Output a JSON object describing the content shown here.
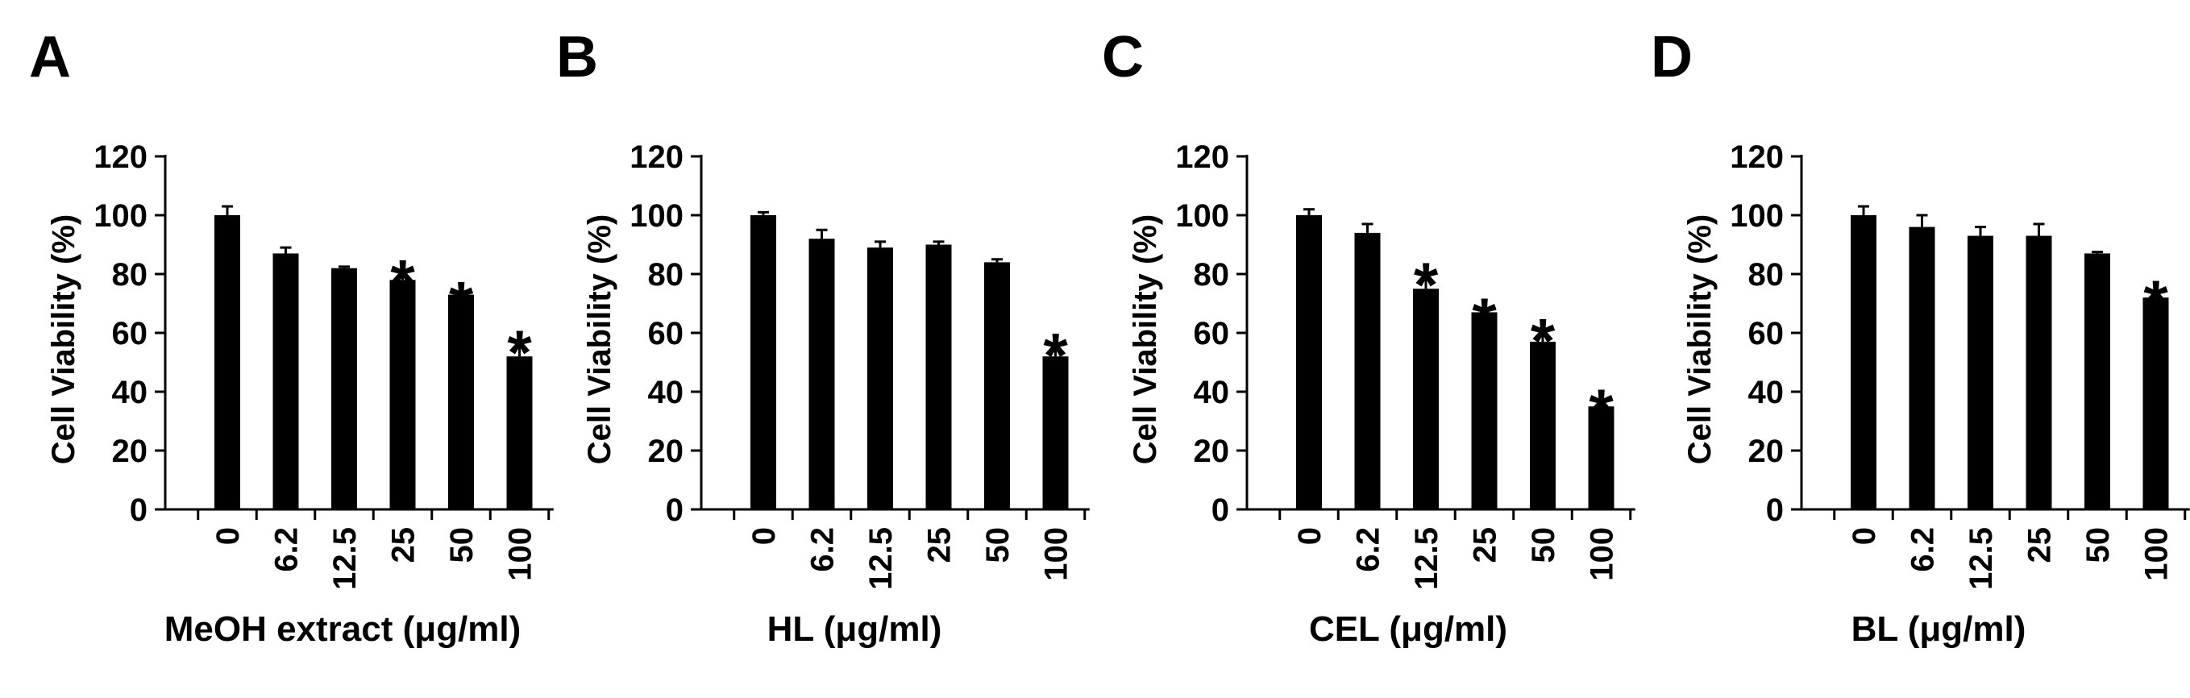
{
  "colors": {
    "bar": "#000000",
    "axis": "#000000",
    "background": "#ffffff"
  },
  "chart_data": [
    {
      "type": "bar",
      "panel_label": "A",
      "categories": [
        "0",
        "6.2",
        "12.5",
        "25",
        "50",
        "100"
      ],
      "values": [
        100,
        87,
        82,
        78,
        73,
        52
      ],
      "errors": [
        3,
        2,
        0.5,
        3,
        0.5,
        5
      ],
      "significant": [
        false,
        false,
        false,
        true,
        true,
        true
      ],
      "significance_marker": "*",
      "title": "",
      "xlabel": "MeOH extract (μg/ml)",
      "ylabel": "Cell Viability  (%)",
      "ylim": [
        0,
        120
      ],
      "yticks": [
        0,
        20,
        40,
        60,
        80,
        100,
        120
      ],
      "grid": false,
      "legend": "none"
    },
    {
      "type": "bar",
      "panel_label": "B",
      "categories": [
        "0",
        "6.2",
        "12.5",
        "25",
        "50",
        "100"
      ],
      "values": [
        100,
        92,
        89,
        90,
        84,
        52
      ],
      "errors": [
        1,
        3,
        2,
        1,
        1,
        4
      ],
      "significant": [
        false,
        false,
        false,
        false,
        false,
        true
      ],
      "significance_marker": "*",
      "title": "",
      "xlabel": "HL (μg/ml)",
      "ylabel": "Cell Viability  (%)",
      "ylim": [
        0,
        120
      ],
      "yticks": [
        0,
        20,
        40,
        60,
        80,
        100,
        120
      ],
      "grid": false,
      "legend": "none"
    },
    {
      "type": "bar",
      "panel_label": "C",
      "categories": [
        "0",
        "6.2",
        "12.5",
        "25",
        "50",
        "100"
      ],
      "values": [
        100,
        94,
        75,
        67,
        57,
        35
      ],
      "errors": [
        2,
        3,
        5,
        1,
        4,
        2
      ],
      "significant": [
        false,
        false,
        true,
        true,
        true,
        true
      ],
      "significance_marker": "*",
      "title": "",
      "xlabel": "CEL (μg/ml)",
      "ylabel": "Cell Viability  (%)",
      "ylim": [
        0,
        120
      ],
      "yticks": [
        0,
        20,
        40,
        60,
        80,
        100,
        120
      ],
      "grid": false,
      "legend": "none"
    },
    {
      "type": "bar",
      "panel_label": "D",
      "categories": [
        "0",
        "6.2",
        "12.5",
        "25",
        "50",
        "100"
      ],
      "values": [
        100,
        96,
        93,
        93,
        87,
        72
      ],
      "errors": [
        3,
        4,
        3,
        4,
        0.5,
        2
      ],
      "significant": [
        false,
        false,
        false,
        false,
        false,
        true
      ],
      "significance_marker": "*",
      "title": "",
      "xlabel": "BL (μg/ml)",
      "ylabel": "Cell Viability  (%)",
      "ylim": [
        0,
        120
      ],
      "yticks": [
        0,
        20,
        40,
        60,
        80,
        100,
        120
      ],
      "grid": false,
      "legend": "none"
    }
  ]
}
